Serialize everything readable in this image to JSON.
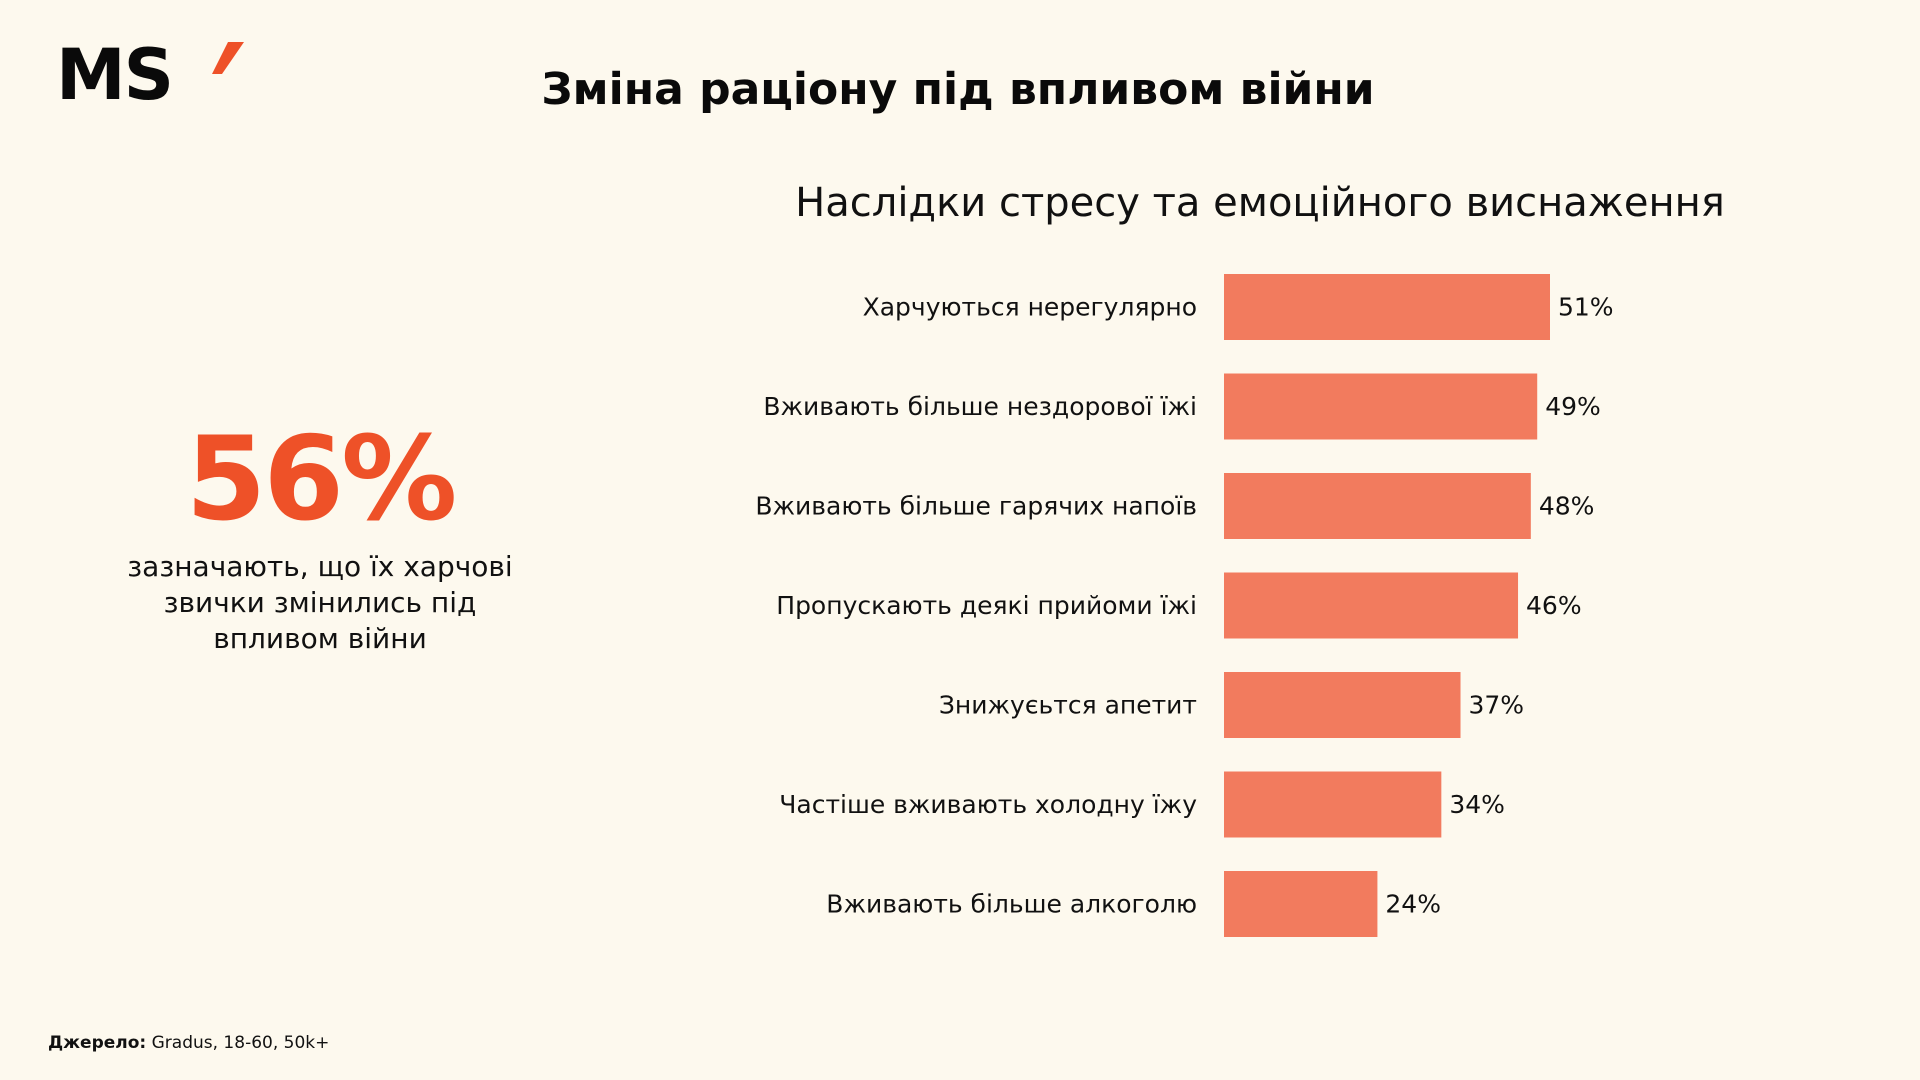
{
  "brand": {
    "logo_text": "MS",
    "logo_mark": "'",
    "accent_color": "#EE5128"
  },
  "header": {
    "title": "Зміна раціону під впливом війни"
  },
  "highlight": {
    "value": "56%",
    "description_lines": [
      "зазначають, що їх харчові",
      "звички змінились під",
      "впливом війни"
    ]
  },
  "footer": {
    "source_label": "Джерело:",
    "source_value": " Gradus, 18-60, 50k+"
  },
  "colors": {
    "background": "#FDF9EE",
    "bar": "#F27B5E",
    "highlight": "#EE5128"
  },
  "chart_data": {
    "type": "bar",
    "orientation": "horizontal",
    "title": "Наслідки стресу та емоційного виснаження",
    "xlabel": "",
    "ylabel": "",
    "xlim": [
      0,
      51
    ],
    "grid": false,
    "categories": [
      "Харчуються нерегулярно",
      "Вживають більше нездорової їжі",
      "Вживають більше гарячих напоїв",
      "Пропускають деякі прийоми їжі",
      "Знижуєьтся апетит",
      "Частіше вживають холодну їжу",
      "Вживають більше алкоголю"
    ],
    "values": [
      51,
      49,
      48,
      46,
      37,
      34,
      24
    ],
    "value_labels": [
      "51%",
      "49%",
      "48%",
      "46%",
      "37%",
      "34%",
      "24%"
    ],
    "unit": "%"
  }
}
